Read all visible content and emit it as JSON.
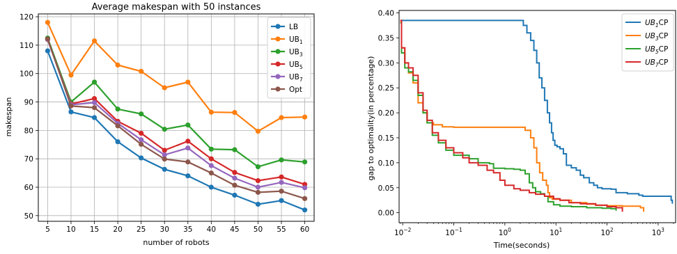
{
  "chart_data": [
    {
      "type": "line",
      "title": "Average makespan with 50 instances",
      "xlabel": "number of robots",
      "ylabel": "makespan",
      "xlim": [
        3,
        62
      ],
      "ylim": [
        48,
        121
      ],
      "xticks": [
        5,
        10,
        15,
        20,
        25,
        30,
        35,
        40,
        45,
        50,
        55,
        60
      ],
      "yticks": [
        50,
        60,
        70,
        80,
        90,
        100,
        110,
        120
      ],
      "grid": true,
      "legend_position": "top-right",
      "x": [
        5,
        10,
        15,
        20,
        25,
        30,
        35,
        40,
        45,
        50,
        55,
        60
      ],
      "series": [
        {
          "name": "LB",
          "name_main": "LB",
          "name_sub": "",
          "color": "#1f77b4",
          "values": [
            108,
            86.5,
            84.5,
            76,
            70.3,
            66.3,
            64,
            60,
            57.2,
            54,
            55.3,
            52
          ]
        },
        {
          "name": "UB1",
          "name_main": "UB",
          "name_sub": "1",
          "color": "#ff7f0e",
          "values": [
            118,
            99.5,
            111.5,
            103,
            100.8,
            95,
            97,
            86.4,
            86.3,
            79.7,
            84.5,
            84.7
          ]
        },
        {
          "name": "UB3",
          "name_main": "UB",
          "name_sub": "3",
          "color": "#2ca02c",
          "values": [
            112.5,
            90,
            97,
            87.5,
            85.8,
            80.4,
            81.9,
            73.4,
            73.2,
            67.2,
            69.6,
            68.9
          ]
        },
        {
          "name": "UB5",
          "name_main": "UB",
          "name_sub": "5",
          "color": "#d62728",
          "values": [
            112,
            89.3,
            91.2,
            83.2,
            79,
            73,
            76.2,
            70,
            65.2,
            62.3,
            63.6,
            61
          ]
        },
        {
          "name": "UB7",
          "name_main": "UB",
          "name_sub": "7",
          "color": "#9467bd",
          "values": [
            112,
            89,
            89.8,
            82.5,
            76.7,
            71.4,
            73.8,
            67.6,
            63.2,
            60,
            61.7,
            59.8
          ]
        },
        {
          "name": "Opt",
          "name_main": "Opt",
          "name_sub": "",
          "color": "#8c564b",
          "values": [
            112.2,
            88.6,
            88,
            81.6,
            75.1,
            69.9,
            68.9,
            65,
            60.7,
            58.2,
            58.6,
            56
          ]
        }
      ]
    },
    {
      "type": "line",
      "title": "",
      "xlabel": "Time(seconds)",
      "ylabel": "gap to optimality(in percentage)",
      "xscale": "log",
      "xlim": [
        0.0085,
        2200
      ],
      "ylim": [
        -0.02,
        0.405
      ],
      "xticks": [
        0.01,
        0.1,
        1,
        10,
        100,
        1000
      ],
      "xtick_base": "10",
      "xtick_exponents": [
        "−2",
        "−1",
        "0",
        "1",
        "2",
        "3"
      ],
      "yticks": [
        "0.00",
        "0.05",
        "0.10",
        "0.15",
        "0.20",
        "0.25",
        "0.30",
        "0.35",
        "0.40"
      ],
      "grid": false,
      "legend_position": "top-right",
      "series": [
        {
          "name": "UB1CP",
          "name_main": "UB",
          "name_sub": "1",
          "name_suffix": "CP",
          "color": "#1f77b4",
          "points": [
            [
              0.009,
              0.385
            ],
            [
              0.05,
              0.385
            ],
            [
              0.5,
              0.385
            ],
            [
              1.9,
              0.385
            ],
            [
              2.3,
              0.375
            ],
            [
              2.7,
              0.36
            ],
            [
              3.2,
              0.345
            ],
            [
              3.7,
              0.325
            ],
            [
              4.2,
              0.3
            ],
            [
              4.7,
              0.27
            ],
            [
              5.3,
              0.25
            ],
            [
              6,
              0.225
            ],
            [
              6.8,
              0.2
            ],
            [
              7.5,
              0.18
            ],
            [
              8.2,
              0.16
            ],
            [
              8.8,
              0.145
            ],
            [
              9.5,
              0.135
            ],
            [
              10.5,
              0.132
            ],
            [
              12,
              0.128
            ],
            [
              14,
              0.118
            ],
            [
              16,
              0.095
            ],
            [
              20,
              0.09
            ],
            [
              25,
              0.085
            ],
            [
              30,
              0.075
            ],
            [
              35,
              0.07
            ],
            [
              45,
              0.06
            ],
            [
              55,
              0.055
            ],
            [
              65,
              0.05
            ],
            [
              80,
              0.048
            ],
            [
              120,
              0.047
            ],
            [
              150,
              0.04
            ],
            [
              250,
              0.038
            ],
            [
              420,
              0.035
            ],
            [
              500,
              0.033
            ],
            [
              1000,
              0.033
            ],
            [
              1600,
              0.033
            ],
            [
              1800,
              0.025
            ],
            [
              1900,
              0.018
            ]
          ]
        },
        {
          "name": "UB3CP",
          "name_main": "UB",
          "name_sub": "3",
          "name_suffix": "CP",
          "color": "#ff7f0e",
          "points": [
            [
              0.009,
              0.382
            ],
            [
              0.0095,
              0.33
            ],
            [
              0.011,
              0.3
            ],
            [
              0.013,
              0.28
            ],
            [
              0.016,
              0.26
            ],
            [
              0.02,
              0.22
            ],
            [
              0.025,
              0.2
            ],
            [
              0.03,
              0.18
            ],
            [
              0.04,
              0.176
            ],
            [
              0.06,
              0.172
            ],
            [
              0.1,
              0.171
            ],
            [
              0.3,
              0.171
            ],
            [
              1,
              0.171
            ],
            [
              1.8,
              0.171
            ],
            [
              2.5,
              0.165
            ],
            [
              3.2,
              0.15
            ],
            [
              3.7,
              0.13
            ],
            [
              4.2,
              0.1
            ],
            [
              4.8,
              0.08
            ],
            [
              5.5,
              0.065
            ],
            [
              6.5,
              0.055
            ],
            [
              7,
              0.04
            ],
            [
              7.5,
              0.03
            ],
            [
              8.5,
              0.027
            ],
            [
              12,
              0.025
            ],
            [
              20,
              0.02
            ],
            [
              40,
              0.017
            ],
            [
              60,
              0.015
            ],
            [
              100,
              0.014
            ],
            [
              200,
              0.013
            ],
            [
              350,
              0.013
            ],
            [
              450,
              0.01
            ],
            [
              520,
              0.002
            ]
          ]
        },
        {
          "name": "UB5CP",
          "name_main": "UB",
          "name_sub": "5",
          "name_suffix": "CP",
          "color": "#2ca02c",
          "points": [
            [
              0.009,
              0.38
            ],
            [
              0.0095,
              0.32
            ],
            [
              0.011,
              0.29
            ],
            [
              0.013,
              0.282
            ],
            [
              0.016,
              0.265
            ],
            [
              0.02,
              0.235
            ],
            [
              0.025,
              0.2
            ],
            [
              0.03,
              0.18
            ],
            [
              0.038,
              0.155
            ],
            [
              0.05,
              0.14
            ],
            [
              0.07,
              0.125
            ],
            [
              0.1,
              0.115
            ],
            [
              0.2,
              0.108
            ],
            [
              0.3,
              0.1
            ],
            [
              0.5,
              0.098
            ],
            [
              0.6,
              0.089
            ],
            [
              1,
              0.088
            ],
            [
              1.5,
              0.087
            ],
            [
              2,
              0.085
            ],
            [
              2.5,
              0.078
            ],
            [
              3,
              0.06
            ],
            [
              3.5,
              0.05
            ],
            [
              4,
              0.042
            ],
            [
              5,
              0.038
            ],
            [
              6,
              0.033
            ],
            [
              7,
              0.022
            ],
            [
              9,
              0.016
            ],
            [
              12,
              0.013
            ],
            [
              20,
              0.012
            ],
            [
              40,
              0.01
            ],
            [
              80,
              0.009
            ],
            [
              120,
              0.008
            ],
            [
              150,
              0.004
            ]
          ]
        },
        {
          "name": "UB7CP",
          "name_main": "UB",
          "name_sub": "7",
          "name_suffix": "CP",
          "color": "#d62728",
          "points": [
            [
              0.009,
              0.385
            ],
            [
              0.0095,
              0.33
            ],
            [
              0.011,
              0.3
            ],
            [
              0.013,
              0.29
            ],
            [
              0.016,
              0.275
            ],
            [
              0.02,
              0.24
            ],
            [
              0.025,
              0.205
            ],
            [
              0.03,
              0.185
            ],
            [
              0.038,
              0.16
            ],
            [
              0.05,
              0.145
            ],
            [
              0.07,
              0.13
            ],
            [
              0.1,
              0.12
            ],
            [
              0.15,
              0.11
            ],
            [
              0.2,
              0.1
            ],
            [
              0.3,
              0.095
            ],
            [
              0.45,
              0.085
            ],
            [
              0.6,
              0.08
            ],
            [
              0.8,
              0.065
            ],
            [
              1,
              0.055
            ],
            [
              1.5,
              0.048
            ],
            [
              2,
              0.045
            ],
            [
              3,
              0.04
            ],
            [
              4,
              0.037
            ],
            [
              6,
              0.033
            ],
            [
              9,
              0.028
            ],
            [
              12,
              0.025
            ],
            [
              18,
              0.02
            ],
            [
              30,
              0.018
            ],
            [
              60,
              0.015
            ],
            [
              100,
              0.012
            ],
            [
              150,
              0.01
            ],
            [
              200,
              0.002
            ]
          ]
        }
      ]
    }
  ]
}
